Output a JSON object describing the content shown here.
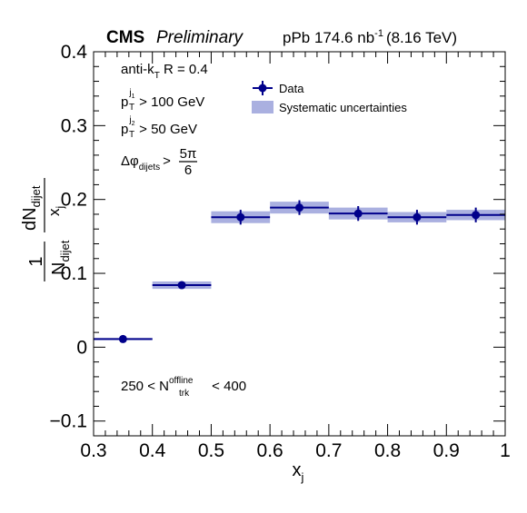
{
  "header": {
    "experiment": "CMS",
    "status": "Preliminary",
    "lumi_prefix": "pPb 174.6 nb",
    "lumi_exp": "-1",
    "energy": "(8.16 TeV)"
  },
  "annotations": {
    "jet_algo_main": "anti-k",
    "jet_algo_sub": "T",
    "jet_algo_rest": " R = 0.4",
    "pt1_p": "p",
    "pt1_sup": "j",
    "pt1_supsub": "1",
    "pt1_sub": "T",
    "pt1_rest": " > 100 GeV",
    "pt2_p": "p",
    "pt2_sup": "j",
    "pt2_supsub": "2",
    "pt2_sub": "T",
    "pt2_rest": " > 50 GeV",
    "dphi_main": "Δφ",
    "dphi_sub": "dijets",
    "dphi_gt": ">",
    "dphi_num": "5π",
    "dphi_den": "6",
    "mult_left": "250 < N",
    "mult_sup": "offline",
    "mult_sub": "trk",
    "mult_right": " < 400"
  },
  "colors": {
    "data": "#00008b",
    "syst": "#aab0e0",
    "axis": "#000000"
  },
  "chart_data": {
    "type": "scatter",
    "xlabel": "x",
    "xlabel_sub": "j",
    "ylabel": {
      "prefactor_num": "1",
      "prefactor_den": "N",
      "prefactor_den_sub": "dijet",
      "frac_num": "dN",
      "frac_num_sub": "dijet",
      "frac_den": "x",
      "frac_den_sub": "j"
    },
    "xlim": [
      0.3,
      1.0
    ],
    "ylim": [
      -0.12,
      0.4
    ],
    "x_ticks": [
      0.3,
      0.4,
      0.5,
      0.6,
      0.7,
      0.8,
      0.9,
      1.0
    ],
    "x_tick_labels": [
      "0.3",
      "0.4",
      "0.5",
      "0.6",
      "0.7",
      "0.8",
      "0.9",
      "1"
    ],
    "y_ticks": [
      -0.1,
      0.0,
      0.1,
      0.2,
      0.3,
      0.4
    ],
    "y_tick_labels": [
      "−0.1",
      "0",
      "0.1",
      "0.2",
      "0.3",
      "0.4"
    ],
    "grid": false,
    "legend_position": "top-center",
    "series": [
      {
        "name": "Data",
        "marker": "circle",
        "points": [
          {
            "x_low": 0.3,
            "x_high": 0.4,
            "x": 0.35,
            "y": 0.011,
            "stat": 0.002,
            "syst": 0.001
          },
          {
            "x_low": 0.4,
            "x_high": 0.5,
            "x": 0.45,
            "y": 0.084,
            "stat": 0.004,
            "syst": 0.005
          },
          {
            "x_low": 0.5,
            "x_high": 0.6,
            "x": 0.55,
            "y": 0.176,
            "stat": 0.01,
            "syst": 0.008
          },
          {
            "x_low": 0.6,
            "x_high": 0.7,
            "x": 0.65,
            "y": 0.189,
            "stat": 0.01,
            "syst": 0.008
          },
          {
            "x_low": 0.7,
            "x_high": 0.8,
            "x": 0.75,
            "y": 0.181,
            "stat": 0.01,
            "syst": 0.008
          },
          {
            "x_low": 0.8,
            "x_high": 0.9,
            "x": 0.85,
            "y": 0.176,
            "stat": 0.01,
            "syst": 0.007
          },
          {
            "x_low": 0.9,
            "x_high": 1.0,
            "x": 0.95,
            "y": 0.179,
            "stat": 0.01,
            "syst": 0.007
          }
        ]
      },
      {
        "name": "Systematic uncertainties",
        "marker": "box"
      }
    ]
  }
}
